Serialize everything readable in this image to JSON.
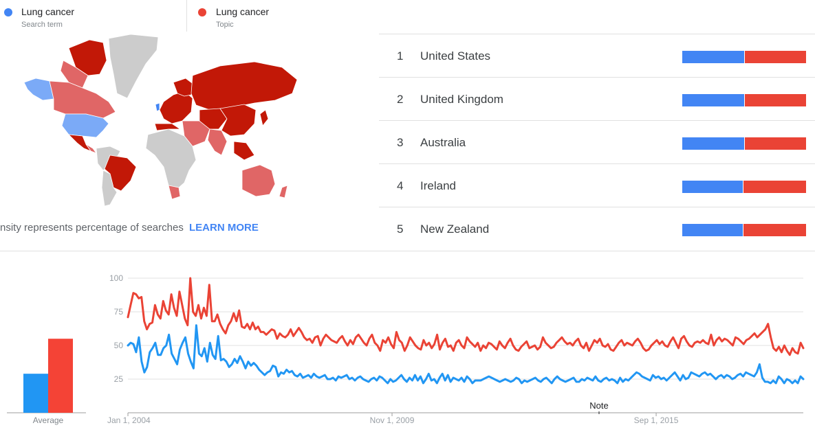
{
  "legend": [
    {
      "name": "Lung cancer",
      "type": "Search term",
      "color": "#4285f4"
    },
    {
      "name": "Lung cancer",
      "type": "Topic",
      "color": "#ea4335"
    }
  ],
  "map": {
    "caption": "nsity represents percentage of searches",
    "learn_more": "LEARN MORE",
    "colors": {
      "dark_red": "#c21807",
      "light_red": "#e06666",
      "blue": "#4285f4",
      "light_blue": "#7baaf7",
      "grey": "#cccccc"
    }
  },
  "rankings": [
    {
      "rank": "1",
      "name": "United States",
      "blue_share": 0.5
    },
    {
      "rank": "2",
      "name": "United Kingdom",
      "blue_share": 0.5
    },
    {
      "rank": "3",
      "name": "Australia",
      "blue_share": 0.5
    },
    {
      "rank": "4",
      "name": "Ireland",
      "blue_share": 0.49
    },
    {
      "rank": "5",
      "name": "New Zealand",
      "blue_share": 0.49
    }
  ],
  "average": {
    "label": "Average",
    "values": [
      29,
      55
    ],
    "colors": [
      "#2196f3",
      "#f44336"
    ]
  },
  "note_label": "Note",
  "chart_data": {
    "type": "line",
    "x_tick_labels": [
      "Jan 1, 2004",
      "Nov 1, 2009",
      "Sep 1, 2015"
    ],
    "x_range": [
      "2004-01",
      "2018-12"
    ],
    "y_ticks": [
      25,
      50,
      75,
      100
    ],
    "ylim": [
      0,
      100
    ],
    "grid": true,
    "series": [
      {
        "name": "Lung cancer (Search term)",
        "color": "#2196f3",
        "values": [
          50,
          52,
          51,
          45,
          56,
          38,
          30,
          34,
          45,
          48,
          52,
          43,
          43,
          48,
          50,
          58,
          44,
          40,
          36,
          47,
          52,
          56,
          44,
          38,
          33,
          65,
          44,
          42,
          48,
          38,
          52,
          43,
          40,
          57,
          39,
          40,
          38,
          34,
          36,
          40,
          37,
          42,
          38,
          33,
          38,
          35,
          37,
          35,
          32,
          30,
          28,
          30,
          31,
          35,
          34,
          27,
          30,
          29,
          32,
          30,
          31,
          28,
          27,
          29,
          26,
          27,
          28,
          26,
          29,
          27,
          26,
          27,
          28,
          25,
          25,
          26,
          24,
          27,
          26,
          27,
          28,
          25,
          26,
          24,
          26,
          27,
          25,
          24,
          23,
          25,
          26,
          24,
          27,
          26,
          24,
          22,
          25,
          23,
          24,
          26,
          28,
          25,
          23,
          26,
          24,
          28,
          24,
          27,
          22,
          25,
          29,
          24,
          25,
          22,
          26,
          29,
          24,
          28,
          23,
          26,
          25,
          24,
          26,
          23,
          27,
          25,
          22,
          24,
          24,
          24,
          25,
          26,
          27,
          26,
          25,
          24,
          23,
          24,
          25,
          24,
          23,
          24,
          26,
          25,
          22,
          24,
          23,
          24,
          25,
          26,
          24,
          23,
          25,
          26,
          24,
          22,
          25,
          27,
          25,
          24,
          23,
          24,
          25,
          26,
          23,
          23,
          25,
          24,
          26,
          25,
          24,
          27,
          24,
          23,
          25,
          26,
          24,
          25,
          24,
          22,
          26,
          23,
          25,
          24,
          26,
          28,
          30,
          29,
          27,
          26,
          25,
          24,
          28,
          26,
          27,
          25,
          26,
          24,
          26,
          28,
          30,
          27,
          24,
          28,
          25,
          26,
          30,
          29,
          28,
          27,
          29,
          30,
          28,
          29,
          27,
          25,
          27,
          28,
          26,
          28,
          27,
          25,
          26,
          28,
          29,
          27,
          30,
          29,
          28,
          27,
          30,
          36,
          26,
          23,
          23,
          22,
          24,
          22,
          27,
          25,
          22,
          25,
          24,
          22,
          24,
          22,
          27,
          25
        ]
      },
      {
        "name": "Lung cancer (Topic)",
        "color": "#ea4335",
        "values": [
          71,
          80,
          89,
          88,
          85,
          86,
          68,
          62,
          66,
          67,
          80,
          73,
          70,
          83,
          76,
          73,
          88,
          78,
          72,
          90,
          80,
          70,
          65,
          100,
          75,
          72,
          80,
          70,
          78,
          72,
          95,
          68,
          68,
          73,
          66,
          62,
          59,
          65,
          68,
          74,
          68,
          76,
          64,
          63,
          66,
          62,
          67,
          62,
          64,
          60,
          60,
          58,
          60,
          62,
          61,
          55,
          59,
          57,
          56,
          58,
          62,
          57,
          60,
          63,
          60,
          56,
          54,
          55,
          52,
          56,
          57,
          50,
          55,
          58,
          56,
          54,
          53,
          52,
          55,
          57,
          53,
          50,
          54,
          51,
          56,
          58,
          55,
          52,
          50,
          55,
          58,
          52,
          50,
          46,
          54,
          52,
          56,
          51,
          48,
          60,
          54,
          52,
          46,
          50,
          56,
          53,
          50,
          48,
          47,
          54,
          50,
          52,
          48,
          51,
          58,
          47,
          52,
          55,
          49,
          50,
          46,
          52,
          54,
          50,
          48,
          56,
          53,
          51,
          49,
          52,
          46,
          50,
          48,
          52,
          51,
          49,
          47,
          53,
          50,
          48,
          52,
          55,
          50,
          47,
          46,
          49,
          51,
          53,
          48,
          49,
          50,
          47,
          49,
          56,
          52,
          50,
          48,
          49,
          52,
          54,
          56,
          53,
          51,
          52,
          50,
          53,
          55,
          50,
          48,
          52,
          46,
          50,
          54,
          52,
          55,
          50,
          49,
          51,
          47,
          46,
          49,
          52,
          54,
          50,
          52,
          51,
          50,
          53,
          55,
          52,
          48,
          46,
          47,
          50,
          52,
          54,
          51,
          53,
          50,
          49,
          53,
          56,
          52,
          48,
          55,
          57,
          53,
          50,
          49,
          52,
          53,
          52,
          54,
          52,
          51,
          58,
          50,
          54,
          56,
          53,
          55,
          54,
          52,
          50,
          56,
          55,
          53,
          51,
          54,
          55,
          57,
          59,
          56,
          58,
          60,
          62,
          66,
          56,
          48,
          46,
          49,
          45,
          50,
          46,
          43,
          48,
          45,
          44,
          52,
          48
        ]
      }
    ]
  }
}
